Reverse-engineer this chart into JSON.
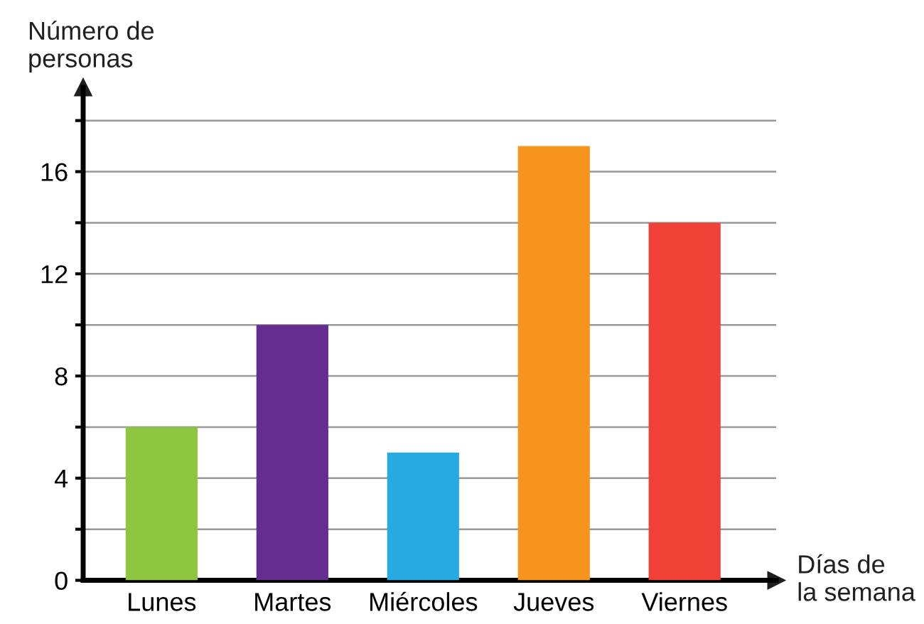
{
  "chart_data": {
    "type": "bar",
    "xlabel": "Días de\nla semana",
    "ylabel": "Número de\npersonas",
    "categories": [
      "Lunes",
      "Martes",
      "Miércoles",
      "Jueves",
      "Viernes"
    ],
    "values": [
      6,
      10,
      5,
      17,
      14
    ],
    "colors": [
      "#8dc63f",
      "#662d91",
      "#27aae1",
      "#f7941d",
      "#ef4136"
    ],
    "ylim": [
      0,
      19.3
    ],
    "yticks": [
      0,
      {
        "value": 2,
        "label": null
      },
      4,
      {
        "value": 6,
        "label": null
      },
      8,
      {
        "value": 10,
        "label": null
      },
      12,
      {
        "value": 14,
        "label": null
      },
      16,
      {
        "value": 18,
        "label": null
      }
    ],
    "grid": "y"
  }
}
